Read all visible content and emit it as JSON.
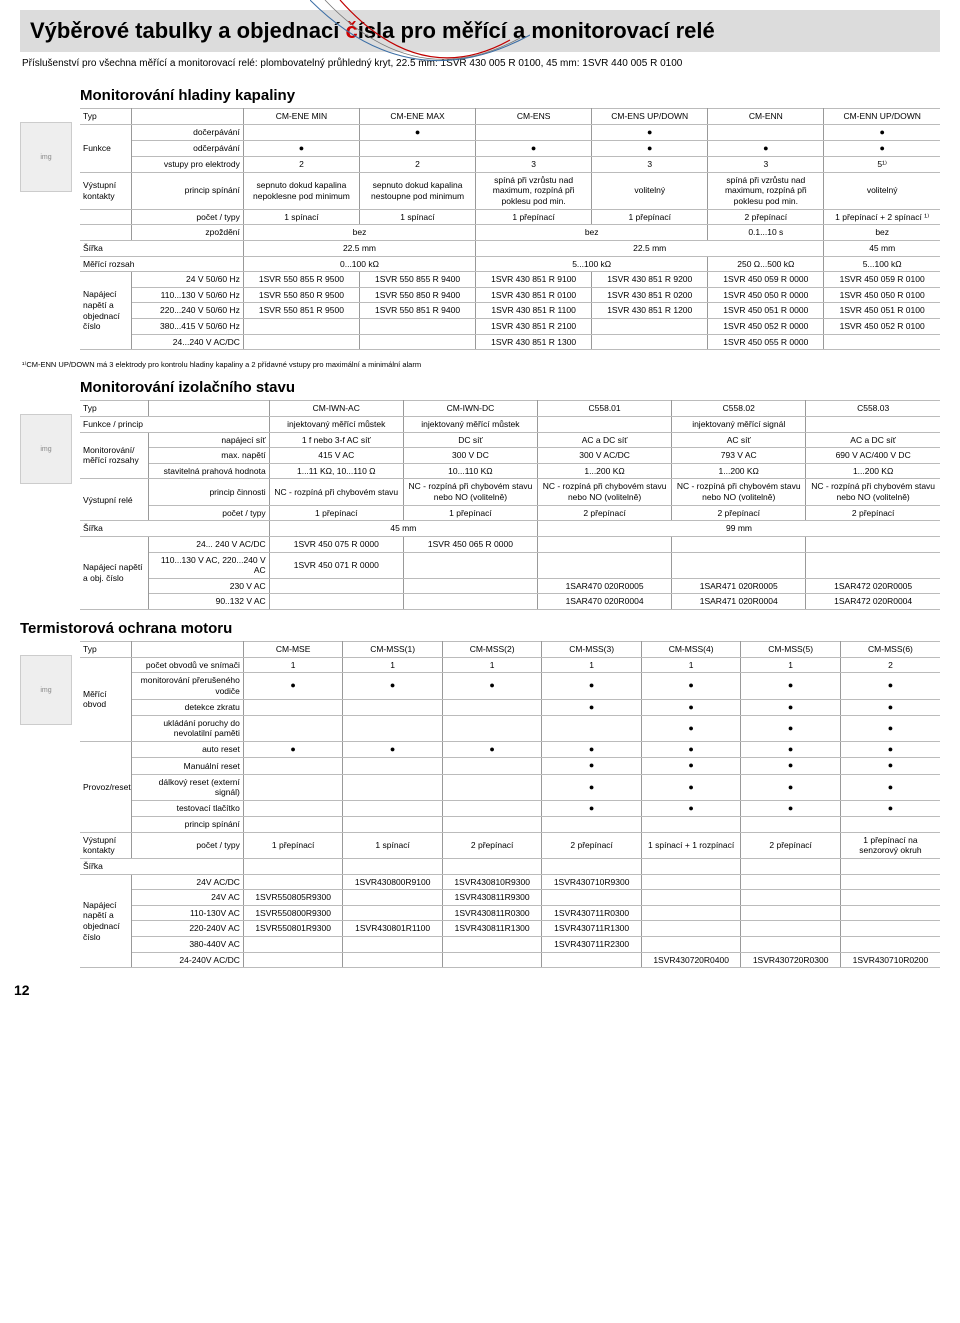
{
  "colors": {
    "header_bg": "#dcdcdc",
    "red": "#c00000",
    "border": "#999999"
  },
  "header": {
    "title_black": "Výběrové tabulky a objednací ",
    "title_red": "č",
    "title_rest": "ísla pro měřící a monitorovací relé",
    "subtitle": "Příslušenství pro všechna měřící a monitorovací relé: plombovatelný průhledný kryt, 22.5 mm: 1SVR 430 005 R 0100, 45 mm: 1SVR 440 005 R 0100"
  },
  "s1": {
    "title": "Monitorování hladiny kapaliny",
    "typ": "Typ",
    "cols": [
      "CM-ENE MIN",
      "CM-ENE MAX",
      "CM-ENS",
      "CM-ENS UP/DOWN",
      "CM-ENN",
      "CM-ENN UP/DOWN"
    ],
    "funkce_label": "Funkce",
    "funkce_rows": [
      {
        "l": "dočerpávání",
        "v": [
          "",
          "●",
          "",
          "●",
          "",
          "●"
        ]
      },
      {
        "l": "odčerpávání",
        "v": [
          "●",
          "",
          "●",
          "●",
          "●",
          "●"
        ]
      },
      {
        "l": "vstupy pro elektrody",
        "v": [
          "2",
          "2",
          "3",
          "3",
          "3",
          "5¹⁾"
        ]
      }
    ],
    "output": "Výstupní kontakty",
    "output_sub": "princip spínání",
    "output_cells": [
      "sepnuto dokud kapalina nepoklesne pod minimum",
      "sepnuto dokud kapalina nestoupne pod minimum",
      "spíná při vzrůstu nad maximum, rozpíná při poklesu pod min.",
      "volitelný",
      "spíná při vzrůstu nad maximum, rozpíná při poklesu pod min.",
      "volitelný"
    ],
    "pocet": {
      "l": "počet / typy",
      "v": [
        "1 spínací",
        "1 spínací",
        "1 přepínací",
        "1 přepínací",
        "2 přepínací",
        "1 přepínací + 2 spínací ¹⁾"
      ]
    },
    "zpozdeni": {
      "l": "zpoždění",
      "v": [
        "bez",
        "",
        "bez",
        "",
        "0.1...10 s",
        "bez"
      ]
    },
    "sirka": {
      "l": "Šířka",
      "v": [
        "22.5 mm",
        "",
        "22.5 mm",
        "",
        "",
        "45 mm"
      ]
    },
    "rozsah": {
      "l": "Měřící rozsah",
      "v": [
        "0...100 kΩ",
        "",
        "5...100 kΩ",
        "",
        "250 Ω...500 kΩ",
        "5...100 kΩ"
      ]
    },
    "supply_label": "Napájecí napětí a objednací číslo",
    "supply_rows": [
      {
        "l": "24 V 50/60 Hz",
        "v": [
          "1SVR 550 855 R 9500",
          "1SVR 550 855 R 9400",
          "1SVR 430 851 R 9100",
          "1SVR 430 851 R 9200",
          "1SVR 450 059 R 0000",
          "1SVR 450 059 R 0100"
        ]
      },
      {
        "l": "110...130 V 50/60 Hz",
        "v": [
          "1SVR 550 850 R 9500",
          "1SVR 550 850 R 9400",
          "1SVR 430 851 R 0100",
          "1SVR 430 851 R 0200",
          "1SVR 450 050 R 0000",
          "1SVR 450 050 R 0100"
        ]
      },
      {
        "l": "220...240 V 50/60 Hz",
        "v": [
          "1SVR 550 851 R 9500",
          "1SVR 550 851 R 9400",
          "1SVR 430 851 R 1100",
          "1SVR 430 851 R 1200",
          "1SVR 450 051 R 0000",
          "1SVR 450 051 R 0100"
        ]
      },
      {
        "l": "380...415 V 50/60 Hz",
        "v": [
          "",
          "",
          "1SVR 430 851 R 2100",
          "",
          "1SVR 450 052 R 0000",
          "1SVR 450 052 R 0100"
        ]
      },
      {
        "l": "24...240 V AC/DC",
        "v": [
          "",
          "",
          "1SVR 430 851 R 1300",
          "",
          "1SVR 450 055 R 0000",
          ""
        ]
      }
    ],
    "footnote": "¹⁾CM-ENN UP/DOWN má 3 elektrody pro kontrolu hladiny kapaliny a 2 přídavné vstupy pro maximální a minimální alarm",
    "colwidths": [
      "6%",
      "13%",
      "13.5%",
      "13.5%",
      "13.5%",
      "13.5%",
      "13.5%",
      "13.5%"
    ]
  },
  "s2": {
    "title": "Monitorování izolačního stavu",
    "typ": "Typ",
    "cols": [
      "CM-IWN-AC",
      "CM-IWN-DC",
      "C558.01",
      "C558.02",
      "C558.03"
    ],
    "funkce_row": {
      "l": "Funkce / princip",
      "v": [
        "injektovaný měřící můstek",
        "injektovaný měřící můstek",
        "",
        "injektovaný měřící signál",
        ""
      ]
    },
    "mon_label": "Monitorování/ měřící rozsahy",
    "mon_rows": [
      {
        "l": "napájecí síť",
        "v": [
          "1 f nebo 3-f AC síť",
          "DC síť",
          "AC a DC síť",
          "AC síť",
          "AC a DC síť"
        ]
      },
      {
        "l": "max. napětí",
        "v": [
          "415 V AC",
          "300 V DC",
          "300 V AC/DC",
          "793 V AC",
          "690 V AC/400 V DC"
        ]
      },
      {
        "l": "stavitelná prahová hodnota",
        "v": [
          "1...11 KΩ, 10...110 Ω",
          "10...110 KΩ",
          "1...200 KΩ",
          "1...200 KΩ",
          "1...200 KΩ"
        ]
      }
    ],
    "out_label": "Výstupní relé",
    "out_rows": [
      {
        "l": "princip činnosti",
        "v": [
          "NC - rozpíná při chybovém stavu",
          "NC - rozpíná při chybovém stavu nebo NO (volitelně)",
          "NC - rozpíná při chybovém stavu nebo NO (volitelně)",
          "NC - rozpíná při chybovém stavu nebo NO (volitelně)",
          "NC - rozpíná při chybovém stavu nebo NO (volitelně)"
        ]
      },
      {
        "l": "počet / typy",
        "v": [
          "1 přepínací",
          "1 přepínací",
          "2 přepínací",
          "2 přepínací",
          "2 přepínací"
        ]
      }
    ],
    "sirka": {
      "l": "Šířka",
      "v": [
        "45 mm",
        "",
        "",
        "99 mm",
        ""
      ]
    },
    "supply_label": "Napájecí napětí a obj. číslo",
    "supply_rows": [
      {
        "l": "24... 240 V AC/DC",
        "v": [
          "1SVR 450 075 R 0000",
          "1SVR 450 065 R 0000",
          "",
          "",
          ""
        ]
      },
      {
        "l": "110...130 V AC, 220...240 V AC",
        "v": [
          "1SVR 450 071 R 0000",
          "",
          "",
          "",
          ""
        ]
      },
      {
        "l": "230 V AC",
        "v": [
          "",
          "",
          "1SAR470 020R0005",
          "1SAR471 020R0005",
          "1SAR472 020R0005"
        ]
      },
      {
        "l": "90..132 V AC",
        "v": [
          "",
          "",
          "1SAR470 020R0004",
          "1SAR471 020R0004",
          "1SAR472 020R0004"
        ]
      }
    ],
    "colwidths": [
      "8%",
      "14%",
      "15.6%",
      "15.6%",
      "15.6%",
      "15.6%",
      "15.6%"
    ]
  },
  "s3": {
    "title": "Termistorová ochrana motoru",
    "typ": "Typ",
    "cols": [
      "CM-MSE",
      "CM-MSS(1)",
      "CM-MSS(2)",
      "CM-MSS(3)",
      "CM-MSS(4)",
      "CM-MSS(5)",
      "CM-MSS(6)"
    ],
    "meas_label": "Měřící obvod",
    "meas_rows": [
      {
        "l": "počet obvodů ve snímači",
        "v": [
          "1",
          "1",
          "1",
          "1",
          "1",
          "1",
          "2"
        ]
      },
      {
        "l": "monitorování přerušeného vodiče",
        "v": [
          "●",
          "●",
          "●",
          "●",
          "●",
          "●",
          "●"
        ]
      },
      {
        "l": "detekce zkratu",
        "v": [
          "",
          "",
          "",
          "●",
          "●",
          "●",
          "●"
        ]
      },
      {
        "l": "ukládání poruchy do nevolatilní paměti",
        "v": [
          "",
          "",
          "",
          "",
          "●",
          "●",
          "●"
        ]
      }
    ],
    "op_label": "Provoz/reset",
    "op_rows": [
      {
        "l": "auto reset",
        "v": [
          "●",
          "●",
          "●",
          "●",
          "●",
          "●",
          "●"
        ]
      },
      {
        "l": "Manuální reset",
        "v": [
          "",
          "",
          "",
          "●",
          "●",
          "●",
          "●"
        ]
      },
      {
        "l": "dálkový reset (externí signál)",
        "v": [
          "",
          "",
          "",
          "●",
          "●",
          "●",
          "●"
        ]
      },
      {
        "l": "testovací tlačítko",
        "v": [
          "",
          "",
          "",
          "●",
          "●",
          "●",
          "●"
        ]
      },
      {
        "l": "princip spínání",
        "v": [
          "",
          "",
          "",
          "",
          "",
          "",
          ""
        ]
      }
    ],
    "out_label": "Výstupní kontakty",
    "out_row": {
      "l": "počet / typy",
      "v": [
        "1 přepínací",
        "1 spínací",
        "2 přepínací",
        "2 přepínací",
        "1 spínací + 1 rozpínací",
        "2 přepínací",
        "1 přepínací na senzorový okruh"
      ]
    },
    "sirka": {
      "l": "Šířka",
      "v": [
        "",
        "",
        "",
        "",
        "",
        "",
        ""
      ]
    },
    "supply_label": "Napájecí napětí a objednací číslo",
    "supply_rows": [
      {
        "l": "24V AC/DC",
        "v": [
          "",
          "1SVR430800R9100",
          "1SVR430810R9300",
          "1SVR430710R9300",
          "",
          "",
          ""
        ]
      },
      {
        "l": "24V AC",
        "v": [
          "1SVR550805R9300",
          "",
          "1SVR430811R9300",
          "",
          "",
          "",
          ""
        ]
      },
      {
        "l": "110-130V AC",
        "v": [
          "1SVR550800R9300",
          "",
          "1SVR430811R0300",
          "1SVR430711R0300",
          "",
          "",
          ""
        ]
      },
      {
        "l": "220-240V AC",
        "v": [
          "1SVR550801R9300",
          "1SVR430801R1100",
          "1SVR430811R1300",
          "1SVR430711R1300",
          "",
          "",
          ""
        ]
      },
      {
        "l": "380-440V AC",
        "v": [
          "",
          "",
          "",
          "1SVR430711R2300",
          "",
          "",
          ""
        ]
      },
      {
        "l": "24-240V AC/DC",
        "v": [
          "",
          "",
          "",
          "",
          "1SVR430720R0400",
          "1SVR430720R0300",
          "1SVR430710R0200"
        ]
      }
    ],
    "colwidths": [
      "6%",
      "13%",
      "11.57%",
      "11.57%",
      "11.57%",
      "11.57%",
      "11.57%",
      "11.57%",
      "11.57%"
    ]
  },
  "page_number": "12"
}
